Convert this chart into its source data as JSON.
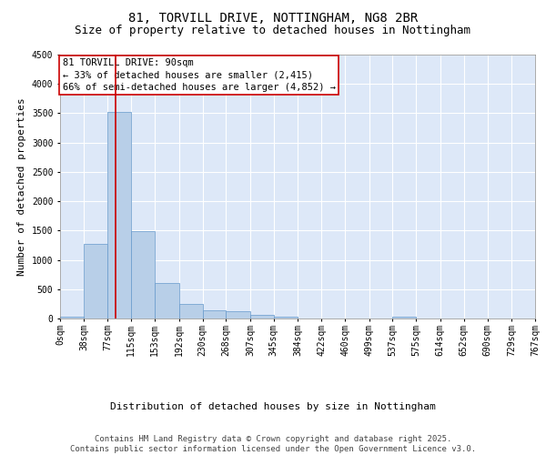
{
  "title_line1": "81, TORVILL DRIVE, NOTTINGHAM, NG8 2BR",
  "title_line2": "Size of property relative to detached houses in Nottingham",
  "xlabel": "Distribution of detached houses by size in Nottingham",
  "ylabel": "Number of detached properties",
  "background_color": "#dde8f8",
  "bar_color": "#b8cfe8",
  "bar_edge_color": "#6699cc",
  "grid_color": "#ffffff",
  "vline_color": "#cc0000",
  "vline_x": 90,
  "bin_edges": [
    0,
    38,
    77,
    115,
    153,
    192,
    230,
    268,
    307,
    345,
    384,
    422,
    460,
    499,
    537,
    575,
    614,
    652,
    690,
    729,
    767
  ],
  "bin_labels": [
    "0sqm",
    "38sqm",
    "77sqm",
    "115sqm",
    "153sqm",
    "192sqm",
    "230sqm",
    "268sqm",
    "307sqm",
    "345sqm",
    "384sqm",
    "422sqm",
    "460sqm",
    "499sqm",
    "537sqm",
    "575sqm",
    "614sqm",
    "652sqm",
    "690sqm",
    "729sqm",
    "767sqm"
  ],
  "bar_heights": [
    25,
    1280,
    3530,
    1490,
    605,
    255,
    135,
    120,
    65,
    30,
    5,
    0,
    0,
    0,
    30,
    0,
    0,
    0,
    0,
    0
  ],
  "ylim": [
    0,
    4500
  ],
  "yticks": [
    0,
    500,
    1000,
    1500,
    2000,
    2500,
    3000,
    3500,
    4000,
    4500
  ],
  "annotation_title": "81 TORVILL DRIVE: 90sqm",
  "annotation_line1": "← 33% of detached houses are smaller (2,415)",
  "annotation_line2": "66% of semi-detached houses are larger (4,852) →",
  "annotation_box_color": "#ffffff",
  "annotation_box_edge": "#cc0000",
  "footer_line1": "Contains HM Land Registry data © Crown copyright and database right 2025.",
  "footer_line2": "Contains public sector information licensed under the Open Government Licence v3.0.",
  "title_fontsize": 10,
  "subtitle_fontsize": 9,
  "ylabel_fontsize": 8,
  "xlabel_fontsize": 8,
  "tick_fontsize": 7,
  "annotation_fontsize": 7.5,
  "footer_fontsize": 6.5
}
